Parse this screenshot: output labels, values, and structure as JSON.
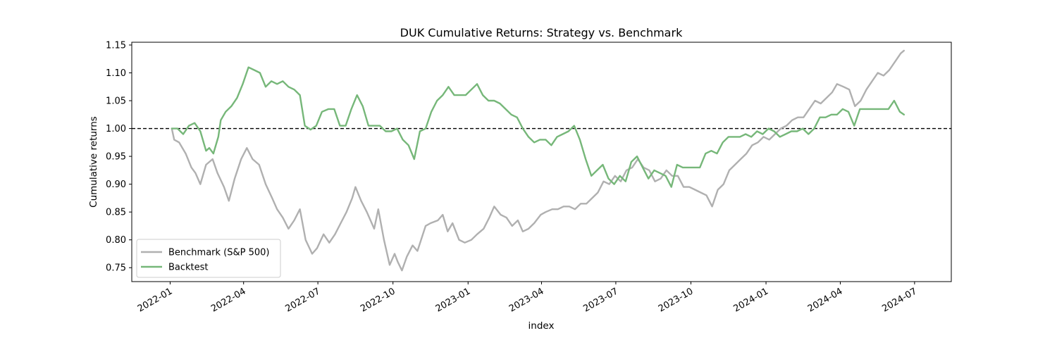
{
  "chart_data": {
    "type": "line",
    "title": "DUK Cumulative Returns: Strategy vs. Benchmark",
    "xlabel": "index",
    "ylabel": "Cumulative returns",
    "xlim": [
      "2021-11-15",
      "2024-08-15"
    ],
    "ylim": [
      0.725,
      1.155
    ],
    "x_ticks": [
      "2022-01",
      "2022-04",
      "2022-07",
      "2022-10",
      "2023-01",
      "2023-04",
      "2023-07",
      "2023-10",
      "2024-01",
      "2024-04",
      "2024-07"
    ],
    "y_ticks": [
      "0.75",
      "0.80",
      "0.85",
      "0.90",
      "0.95",
      "1.00",
      "1.05",
      "1.10",
      "1.15"
    ],
    "reference_line": {
      "y": 1.0,
      "style": "dashed",
      "color": "#000000"
    },
    "legend": {
      "position": "lower-left"
    },
    "series": [
      {
        "name": "Benchmark (S&P 500)",
        "color": "#b0b0b0",
        "points": [
          [
            "2022-01-03",
            1.0
          ],
          [
            "2022-01-06",
            0.98
          ],
          [
            "2022-01-12",
            0.975
          ],
          [
            "2022-01-20",
            0.955
          ],
          [
            "2022-01-27",
            0.93
          ],
          [
            "2022-02-01",
            0.92
          ],
          [
            "2022-02-07",
            0.9
          ],
          [
            "2022-02-14",
            0.935
          ],
          [
            "2022-02-22",
            0.945
          ],
          [
            "2022-02-28",
            0.92
          ],
          [
            "2022-03-08",
            0.895
          ],
          [
            "2022-03-14",
            0.87
          ],
          [
            "2022-03-21",
            0.91
          ],
          [
            "2022-03-29",
            0.945
          ],
          [
            "2022-04-05",
            0.965
          ],
          [
            "2022-04-12",
            0.945
          ],
          [
            "2022-04-20",
            0.935
          ],
          [
            "2022-04-28",
            0.9
          ],
          [
            "2022-05-06",
            0.875
          ],
          [
            "2022-05-12",
            0.855
          ],
          [
            "2022-05-19",
            0.84
          ],
          [
            "2022-05-26",
            0.82
          ],
          [
            "2022-06-02",
            0.835
          ],
          [
            "2022-06-09",
            0.855
          ],
          [
            "2022-06-16",
            0.8
          ],
          [
            "2022-06-24",
            0.775
          ],
          [
            "2022-06-30",
            0.785
          ],
          [
            "2022-07-08",
            0.81
          ],
          [
            "2022-07-15",
            0.795
          ],
          [
            "2022-07-22",
            0.81
          ],
          [
            "2022-07-29",
            0.83
          ],
          [
            "2022-08-05",
            0.85
          ],
          [
            "2022-08-12",
            0.875
          ],
          [
            "2022-08-16",
            0.895
          ],
          [
            "2022-08-23",
            0.87
          ],
          [
            "2022-08-30",
            0.85
          ],
          [
            "2022-09-08",
            0.82
          ],
          [
            "2022-09-13",
            0.855
          ],
          [
            "2022-09-20",
            0.8
          ],
          [
            "2022-09-27",
            0.755
          ],
          [
            "2022-10-03",
            0.775
          ],
          [
            "2022-10-07",
            0.76
          ],
          [
            "2022-10-12",
            0.745
          ],
          [
            "2022-10-18",
            0.77
          ],
          [
            "2022-10-25",
            0.79
          ],
          [
            "2022-10-31",
            0.78
          ],
          [
            "2022-11-10",
            0.825
          ],
          [
            "2022-11-16",
            0.83
          ],
          [
            "2022-11-25",
            0.835
          ],
          [
            "2022-12-01",
            0.845
          ],
          [
            "2022-12-07",
            0.815
          ],
          [
            "2022-12-13",
            0.83
          ],
          [
            "2022-12-21",
            0.8
          ],
          [
            "2022-12-28",
            0.795
          ],
          [
            "2023-01-05",
            0.8
          ],
          [
            "2023-01-12",
            0.81
          ],
          [
            "2023-01-20",
            0.82
          ],
          [
            "2023-01-27",
            0.84
          ],
          [
            "2023-02-02",
            0.86
          ],
          [
            "2023-02-10",
            0.845
          ],
          [
            "2023-02-17",
            0.84
          ],
          [
            "2023-02-24",
            0.825
          ],
          [
            "2023-03-03",
            0.835
          ],
          [
            "2023-03-09",
            0.815
          ],
          [
            "2023-03-16",
            0.82
          ],
          [
            "2023-03-23",
            0.83
          ],
          [
            "2023-03-31",
            0.845
          ],
          [
            "2023-04-06",
            0.85
          ],
          [
            "2023-04-14",
            0.855
          ],
          [
            "2023-04-21",
            0.855
          ],
          [
            "2023-04-28",
            0.86
          ],
          [
            "2023-05-05",
            0.86
          ],
          [
            "2023-05-12",
            0.855
          ],
          [
            "2023-05-19",
            0.865
          ],
          [
            "2023-05-26",
            0.865
          ],
          [
            "2023-06-02",
            0.875
          ],
          [
            "2023-06-09",
            0.885
          ],
          [
            "2023-06-16",
            0.905
          ],
          [
            "2023-06-23",
            0.9
          ],
          [
            "2023-06-30",
            0.915
          ],
          [
            "2023-07-07",
            0.905
          ],
          [
            "2023-07-14",
            0.925
          ],
          [
            "2023-07-21",
            0.93
          ],
          [
            "2023-07-28",
            0.945
          ],
          [
            "2023-08-04",
            0.93
          ],
          [
            "2023-08-11",
            0.925
          ],
          [
            "2023-08-18",
            0.905
          ],
          [
            "2023-08-25",
            0.91
          ],
          [
            "2023-09-01",
            0.925
          ],
          [
            "2023-09-08",
            0.915
          ],
          [
            "2023-09-15",
            0.915
          ],
          [
            "2023-09-22",
            0.895
          ],
          [
            "2023-09-29",
            0.895
          ],
          [
            "2023-10-06",
            0.89
          ],
          [
            "2023-10-13",
            0.885
          ],
          [
            "2023-10-20",
            0.88
          ],
          [
            "2023-10-27",
            0.86
          ],
          [
            "2023-11-03",
            0.89
          ],
          [
            "2023-11-10",
            0.9
          ],
          [
            "2023-11-17",
            0.925
          ],
          [
            "2023-11-24",
            0.935
          ],
          [
            "2023-12-01",
            0.945
          ],
          [
            "2023-12-08",
            0.955
          ],
          [
            "2023-12-15",
            0.97
          ],
          [
            "2023-12-22",
            0.975
          ],
          [
            "2023-12-29",
            0.985
          ],
          [
            "2024-01-05",
            0.98
          ],
          [
            "2024-01-12",
            0.99
          ],
          [
            "2024-01-19",
            1.0
          ],
          [
            "2024-01-26",
            1.005
          ],
          [
            "2024-02-02",
            1.015
          ],
          [
            "2024-02-09",
            1.02
          ],
          [
            "2024-02-16",
            1.02
          ],
          [
            "2024-02-23",
            1.035
          ],
          [
            "2024-03-01",
            1.05
          ],
          [
            "2024-03-08",
            1.045
          ],
          [
            "2024-03-15",
            1.055
          ],
          [
            "2024-03-22",
            1.065
          ],
          [
            "2024-03-28",
            1.08
          ],
          [
            "2024-04-05",
            1.075
          ],
          [
            "2024-04-12",
            1.07
          ],
          [
            "2024-04-19",
            1.04
          ],
          [
            "2024-04-26",
            1.05
          ],
          [
            "2024-05-03",
            1.07
          ],
          [
            "2024-05-10",
            1.085
          ],
          [
            "2024-05-17",
            1.1
          ],
          [
            "2024-05-24",
            1.095
          ],
          [
            "2024-05-31",
            1.105
          ],
          [
            "2024-06-07",
            1.12
          ],
          [
            "2024-06-14",
            1.135
          ],
          [
            "2024-06-18",
            1.14
          ]
        ]
      },
      {
        "name": "Backtest",
        "color": "#76b779",
        "points": [
          [
            "2022-01-03",
            1.0
          ],
          [
            "2022-01-10",
            1.0
          ],
          [
            "2022-01-17",
            0.99
          ],
          [
            "2022-01-24",
            1.005
          ],
          [
            "2022-01-31",
            1.01
          ],
          [
            "2022-02-07",
            0.995
          ],
          [
            "2022-02-14",
            0.96
          ],
          [
            "2022-02-18",
            0.965
          ],
          [
            "2022-02-23",
            0.955
          ],
          [
            "2022-03-01",
            0.985
          ],
          [
            "2022-03-04",
            1.015
          ],
          [
            "2022-03-10",
            1.03
          ],
          [
            "2022-03-17",
            1.04
          ],
          [
            "2022-03-24",
            1.055
          ],
          [
            "2022-03-31",
            1.08
          ],
          [
            "2022-04-07",
            1.11
          ],
          [
            "2022-04-14",
            1.105
          ],
          [
            "2022-04-21",
            1.1
          ],
          [
            "2022-04-28",
            1.075
          ],
          [
            "2022-05-05",
            1.085
          ],
          [
            "2022-05-12",
            1.08
          ],
          [
            "2022-05-19",
            1.085
          ],
          [
            "2022-05-26",
            1.075
          ],
          [
            "2022-06-02",
            1.07
          ],
          [
            "2022-06-09",
            1.06
          ],
          [
            "2022-06-15",
            1.005
          ],
          [
            "2022-06-22",
            0.998
          ],
          [
            "2022-06-29",
            1.005
          ],
          [
            "2022-07-06",
            1.03
          ],
          [
            "2022-07-14",
            1.035
          ],
          [
            "2022-07-21",
            1.035
          ],
          [
            "2022-07-28",
            1.005
          ],
          [
            "2022-08-04",
            1.005
          ],
          [
            "2022-08-11",
            1.035
          ],
          [
            "2022-08-18",
            1.06
          ],
          [
            "2022-08-25",
            1.04
          ],
          [
            "2022-09-01",
            1.005
          ],
          [
            "2022-09-08",
            1.005
          ],
          [
            "2022-09-15",
            1.005
          ],
          [
            "2022-09-22",
            0.995
          ],
          [
            "2022-09-29",
            0.995
          ],
          [
            "2022-10-06",
            1.0
          ],
          [
            "2022-10-13",
            0.98
          ],
          [
            "2022-10-20",
            0.97
          ],
          [
            "2022-10-27",
            0.945
          ],
          [
            "2022-11-03",
            0.995
          ],
          [
            "2022-11-10",
            1.0
          ],
          [
            "2022-11-17",
            1.03
          ],
          [
            "2022-11-24",
            1.05
          ],
          [
            "2022-12-01",
            1.06
          ],
          [
            "2022-12-08",
            1.075
          ],
          [
            "2022-12-15",
            1.06
          ],
          [
            "2022-12-22",
            1.06
          ],
          [
            "2022-12-29",
            1.06
          ],
          [
            "2023-01-05",
            1.07
          ],
          [
            "2023-01-12",
            1.08
          ],
          [
            "2023-01-19",
            1.06
          ],
          [
            "2023-01-26",
            1.05
          ],
          [
            "2023-02-02",
            1.05
          ],
          [
            "2023-02-09",
            1.045
          ],
          [
            "2023-02-16",
            1.035
          ],
          [
            "2023-02-23",
            1.025
          ],
          [
            "2023-03-02",
            1.02
          ],
          [
            "2023-03-09",
            1.0
          ],
          [
            "2023-03-16",
            0.985
          ],
          [
            "2023-03-23",
            0.975
          ],
          [
            "2023-03-30",
            0.98
          ],
          [
            "2023-04-06",
            0.98
          ],
          [
            "2023-04-13",
            0.97
          ],
          [
            "2023-04-20",
            0.985
          ],
          [
            "2023-04-27",
            0.99
          ],
          [
            "2023-05-04",
            0.995
          ],
          [
            "2023-05-11",
            1.005
          ],
          [
            "2023-05-18",
            0.98
          ],
          [
            "2023-05-25",
            0.945
          ],
          [
            "2023-06-01",
            0.915
          ],
          [
            "2023-06-08",
            0.925
          ],
          [
            "2023-06-15",
            0.935
          ],
          [
            "2023-06-22",
            0.91
          ],
          [
            "2023-06-29",
            0.9
          ],
          [
            "2023-07-06",
            0.915
          ],
          [
            "2023-07-13",
            0.905
          ],
          [
            "2023-07-20",
            0.94
          ],
          [
            "2023-07-27",
            0.95
          ],
          [
            "2023-08-03",
            0.93
          ],
          [
            "2023-08-10",
            0.91
          ],
          [
            "2023-08-17",
            0.925
          ],
          [
            "2023-08-24",
            0.92
          ],
          [
            "2023-08-31",
            0.915
          ],
          [
            "2023-09-07",
            0.895
          ],
          [
            "2023-09-14",
            0.935
          ],
          [
            "2023-09-21",
            0.93
          ],
          [
            "2023-09-28",
            0.93
          ],
          [
            "2023-10-05",
            0.93
          ],
          [
            "2023-10-12",
            0.93
          ],
          [
            "2023-10-19",
            0.955
          ],
          [
            "2023-10-26",
            0.96
          ],
          [
            "2023-11-02",
            0.955
          ],
          [
            "2023-11-09",
            0.975
          ],
          [
            "2023-11-16",
            0.985
          ],
          [
            "2023-11-23",
            0.985
          ],
          [
            "2023-11-30",
            0.985
          ],
          [
            "2023-12-07",
            0.99
          ],
          [
            "2023-12-14",
            0.985
          ],
          [
            "2023-12-21",
            0.995
          ],
          [
            "2023-12-28",
            0.99
          ],
          [
            "2024-01-04",
            1.0
          ],
          [
            "2024-01-11",
            0.995
          ],
          [
            "2024-01-18",
            0.985
          ],
          [
            "2024-01-25",
            0.99
          ],
          [
            "2024-02-01",
            0.995
          ],
          [
            "2024-02-08",
            0.995
          ],
          [
            "2024-02-15",
            1.0
          ],
          [
            "2024-02-22",
            0.99
          ],
          [
            "2024-02-29",
            1.0
          ],
          [
            "2024-03-07",
            1.02
          ],
          [
            "2024-03-14",
            1.02
          ],
          [
            "2024-03-21",
            1.025
          ],
          [
            "2024-03-28",
            1.025
          ],
          [
            "2024-04-04",
            1.035
          ],
          [
            "2024-04-11",
            1.03
          ],
          [
            "2024-04-18",
            1.005
          ],
          [
            "2024-04-25",
            1.035
          ],
          [
            "2024-05-02",
            1.035
          ],
          [
            "2024-05-09",
            1.035
          ],
          [
            "2024-05-16",
            1.035
          ],
          [
            "2024-05-23",
            1.035
          ],
          [
            "2024-05-30",
            1.035
          ],
          [
            "2024-06-06",
            1.05
          ],
          [
            "2024-06-13",
            1.03
          ],
          [
            "2024-06-18",
            1.025
          ]
        ]
      }
    ]
  }
}
